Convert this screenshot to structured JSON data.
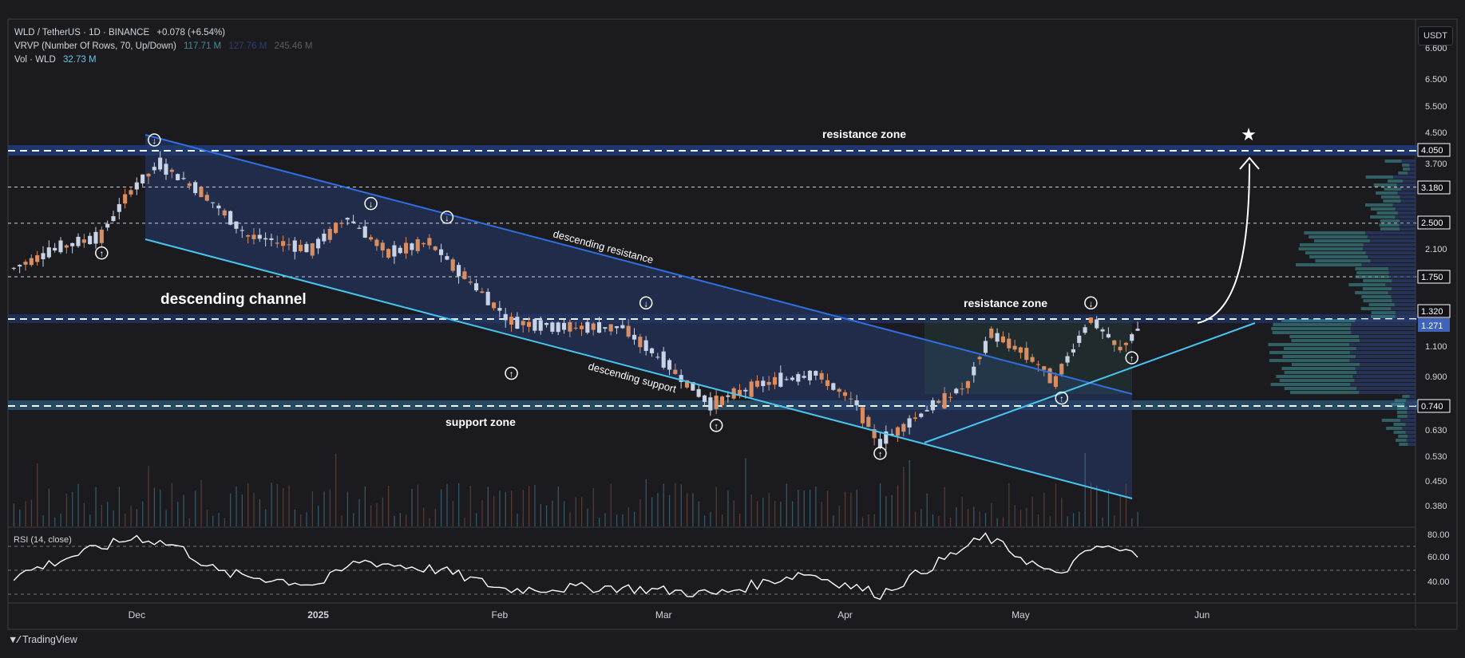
{
  "header": {
    "symbol_line": "WLD / TetherUS · 1D · BINANCE",
    "change": "+0.078 (+6.54%)",
    "vrvp_label": "VRVP (Number Of Rows, 70, Up/Down)",
    "vrvp_up": "117.71 M",
    "vrvp_down": "127.76 M",
    "vrvp_total": "245.46 M",
    "vol_label": "Vol · WLD",
    "vol_value": "32.73 M"
  },
  "currency_button": "USDT",
  "rsi_label": "RSI (14, close)",
  "brand": "TradingView",
  "colors": {
    "background": "#1b1b1f",
    "up_candle": "#c9d3e6",
    "down_candle": "#d98d60",
    "channel_fill": "#243a6e",
    "resistance_line": "#2f6fe0",
    "support_line": "#47c6f0",
    "current_price": "#3f63b8"
  },
  "annotations": {
    "channel": "descending channel",
    "desc_res": "descending resistance",
    "desc_sup": "descending support",
    "res_zone_top": "resistance zone",
    "res_zone_mid": "resistance zone",
    "sup_zone": "support zone"
  },
  "price_axis": {
    "ticks": [
      "6.600",
      "6.500",
      "5.500",
      "4.500",
      "3.700",
      "2.100",
      "1.100",
      "0.900",
      "0.630",
      "0.530",
      "0.450",
      "0.380"
    ],
    "level_labels": [
      "4.050",
      "3.180",
      "2.500",
      "1.750",
      "1.320",
      "0.740"
    ],
    "current": "1.271"
  },
  "rsi_axis": [
    "80.00",
    "60.00",
    "40.00"
  ],
  "time_axis": [
    "Dec",
    "2025",
    "Feb",
    "Mar",
    "Apr",
    "May",
    "Jun"
  ],
  "chart_data": {
    "type": "candlestick",
    "title": "WLD / TetherUS · 1D · BINANCE",
    "x_range": [
      "2024-11-09",
      "2025-06-20"
    ],
    "y_scale": "log",
    "ylim": [
      0.34,
      6.8
    ],
    "horizontal_levels": [
      4.05,
      3.18,
      2.5,
      1.75,
      1.32,
      0.74
    ],
    "zones": [
      {
        "name": "resistance zone",
        "low": 3.85,
        "high": 4.15
      },
      {
        "name": "resistance zone",
        "low": 1.25,
        "high": 1.35
      },
      {
        "name": "support zone",
        "low": 0.7,
        "high": 0.77
      }
    ],
    "close_series": [
      {
        "date": "2024-11-10",
        "close": 1.85
      },
      {
        "date": "2024-11-17",
        "close": 2.1
      },
      {
        "date": "2024-11-25",
        "close": 2.3
      },
      {
        "date": "2024-11-30",
        "close": 3.1
      },
      {
        "date": "2024-12-05",
        "close": 3.7
      },
      {
        "date": "2024-12-12",
        "close": 3.1
      },
      {
        "date": "2024-12-20",
        "close": 2.3
      },
      {
        "date": "2024-12-31",
        "close": 2.1
      },
      {
        "date": "2025-01-06",
        "close": 2.6
      },
      {
        "date": "2025-01-13",
        "close": 2.05
      },
      {
        "date": "2025-01-20",
        "close": 2.2
      },
      {
        "date": "2025-01-27",
        "close": 1.7
      },
      {
        "date": "2025-02-03",
        "close": 1.3
      },
      {
        "date": "2025-02-12",
        "close": 1.25
      },
      {
        "date": "2025-02-22",
        "close": 1.25
      },
      {
        "date": "2025-03-01",
        "close": 1.0
      },
      {
        "date": "2025-03-09",
        "close": 0.75
      },
      {
        "date": "2025-03-17",
        "close": 0.85
      },
      {
        "date": "2025-03-27",
        "close": 0.92
      },
      {
        "date": "2025-04-03",
        "close": 0.75
      },
      {
        "date": "2025-04-07",
        "close": 0.58
      },
      {
        "date": "2025-04-15",
        "close": 0.72
      },
      {
        "date": "2025-04-22",
        "close": 0.85
      },
      {
        "date": "2025-04-26",
        "close": 1.2
      },
      {
        "date": "2025-05-02",
        "close": 1.05
      },
      {
        "date": "2025-05-07",
        "close": 0.88
      },
      {
        "date": "2025-05-13",
        "close": 1.32
      },
      {
        "date": "2025-05-18",
        "close": 1.08
      },
      {
        "date": "2025-05-22",
        "close": 1.27
      }
    ],
    "rsi_series": [
      {
        "date": "2024-11-10",
        "rsi": 45
      },
      {
        "date": "2024-11-20",
        "rsi": 62
      },
      {
        "date": "2024-12-01",
        "rsi": 78
      },
      {
        "date": "2024-12-08",
        "rsi": 70
      },
      {
        "date": "2024-12-15",
        "rsi": 48
      },
      {
        "date": "2025-01-01",
        "rsi": 38
      },
      {
        "date": "2025-01-08",
        "rsi": 58
      },
      {
        "date": "2025-01-22",
        "rsi": 50
      },
      {
        "date": "2025-02-02",
        "rsi": 34
      },
      {
        "date": "2025-02-20",
        "rsi": 36
      },
      {
        "date": "2025-03-10",
        "rsi": 30
      },
      {
        "date": "2025-03-25",
        "rsi": 48
      },
      {
        "date": "2025-04-07",
        "rsi": 30
      },
      {
        "date": "2025-04-25",
        "rsi": 78
      },
      {
        "date": "2025-05-07",
        "rsi": 45
      },
      {
        "date": "2025-05-14",
        "rsi": 70
      },
      {
        "date": "2025-05-22",
        "rsi": 62
      }
    ]
  }
}
